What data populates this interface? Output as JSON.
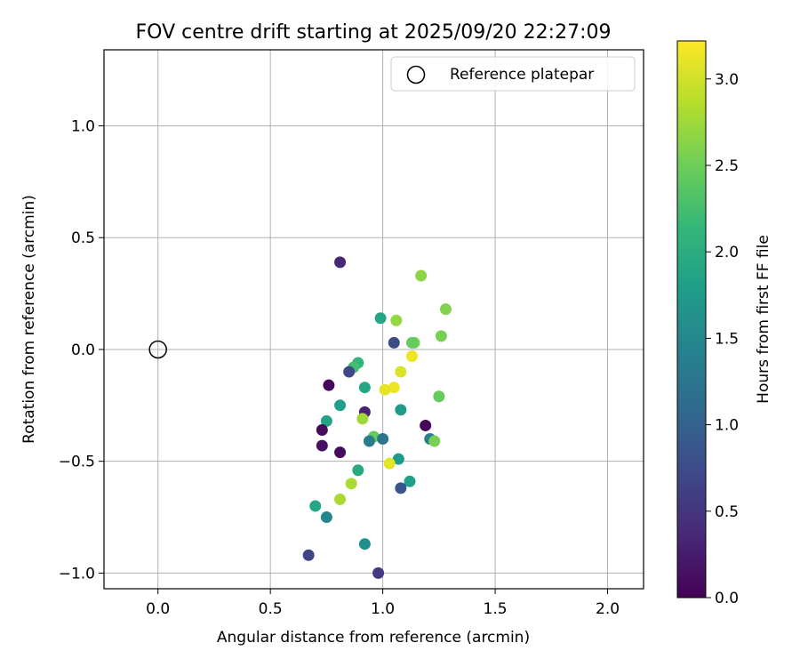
{
  "chart_data": {
    "type": "scatter",
    "title": "FOV centre drift starting at 2025/09/20 22:27:09",
    "xlabel": "Angular distance from reference (arcmin)",
    "ylabel": "Rotation from reference (arcmin)",
    "xlim": [
      -0.24,
      2.16
    ],
    "ylim": [
      -1.07,
      1.34
    ],
    "xticks": [
      0.0,
      0.5,
      1.0,
      1.5,
      2.0
    ],
    "xtick_labels": [
      "0.0",
      "0.5",
      "1.0",
      "1.5",
      "2.0"
    ],
    "yticks": [
      -1.0,
      -0.5,
      0.0,
      0.5,
      1.0
    ],
    "ytick_labels": [
      "−1.0",
      "−0.5",
      "0.0",
      "0.5",
      "1.0"
    ],
    "grid": true,
    "legend": {
      "position": "top-right",
      "entries": [
        "Reference platepar"
      ]
    },
    "reference_point": {
      "x": 0.0,
      "y": 0.0
    },
    "colorbar": {
      "label": "Hours from first FF file",
      "min": 0.0,
      "max": 3.22,
      "ticks": [
        0.0,
        0.5,
        1.0,
        1.5,
        2.0,
        2.5,
        3.0
      ],
      "tick_labels": [
        "0.0",
        "0.5",
        "1.0",
        "1.5",
        "2.0",
        "2.5",
        "3.0"
      ],
      "colormap": [
        "#440154",
        "#482878",
        "#3e4989",
        "#31688e",
        "#26828e",
        "#1f9e89",
        "#35b779",
        "#6ece58",
        "#b5de2b",
        "#fde725"
      ]
    },
    "points": [
      {
        "x": 0.81,
        "y": 0.39,
        "t": 0.35
      },
      {
        "x": 1.17,
        "y": 0.33,
        "t": 2.65
      },
      {
        "x": 1.28,
        "y": 0.18,
        "t": 2.6
      },
      {
        "x": 0.99,
        "y": 0.14,
        "t": 1.9
      },
      {
        "x": 1.06,
        "y": 0.13,
        "t": 2.7
      },
      {
        "x": 1.26,
        "y": 0.06,
        "t": 2.55
      },
      {
        "x": 1.14,
        "y": 0.03,
        "t": 2.55
      },
      {
        "x": 1.05,
        "y": 0.03,
        "t": 0.75
      },
      {
        "x": 1.13,
        "y": 0.03,
        "t": 2.45
      },
      {
        "x": 1.13,
        "y": -0.03,
        "t": 3.15
      },
      {
        "x": 0.89,
        "y": -0.06,
        "t": 2.1
      },
      {
        "x": 0.87,
        "y": -0.08,
        "t": 2.25
      },
      {
        "x": 1.08,
        "y": -0.1,
        "t": 3.05
      },
      {
        "x": 0.85,
        "y": -0.1,
        "t": 0.7
      },
      {
        "x": 0.76,
        "y": -0.16,
        "t": 0.05
      },
      {
        "x": 0.92,
        "y": -0.17,
        "t": 1.9
      },
      {
        "x": 1.05,
        "y": -0.17,
        "t": 3.15
      },
      {
        "x": 1.01,
        "y": -0.18,
        "t": 3.1
      },
      {
        "x": 1.25,
        "y": -0.21,
        "t": 2.45
      },
      {
        "x": 0.81,
        "y": -0.25,
        "t": 1.8
      },
      {
        "x": 1.08,
        "y": -0.27,
        "t": 1.75
      },
      {
        "x": 0.92,
        "y": -0.28,
        "t": 0.3
      },
      {
        "x": 0.91,
        "y": -0.31,
        "t": 2.75
      },
      {
        "x": 0.75,
        "y": -0.32,
        "t": 1.85
      },
      {
        "x": 1.19,
        "y": -0.34,
        "t": 0.05
      },
      {
        "x": 0.73,
        "y": -0.36,
        "t": 0.1
      },
      {
        "x": 0.96,
        "y": -0.39,
        "t": 2.45
      },
      {
        "x": 1.0,
        "y": -0.4,
        "t": 1.25
      },
      {
        "x": 1.21,
        "y": -0.4,
        "t": 1.4
      },
      {
        "x": 1.23,
        "y": -0.41,
        "t": 2.55
      },
      {
        "x": 0.94,
        "y": -0.41,
        "t": 1.35
      },
      {
        "x": 0.73,
        "y": -0.43,
        "t": 0.15
      },
      {
        "x": 0.81,
        "y": -0.46,
        "t": 0.1
      },
      {
        "x": 1.07,
        "y": -0.49,
        "t": 1.75
      },
      {
        "x": 1.03,
        "y": -0.51,
        "t": 3.1
      },
      {
        "x": 0.89,
        "y": -0.54,
        "t": 1.95
      },
      {
        "x": 1.12,
        "y": -0.59,
        "t": 1.8
      },
      {
        "x": 0.86,
        "y": -0.6,
        "t": 2.8
      },
      {
        "x": 1.08,
        "y": -0.62,
        "t": 0.85
      },
      {
        "x": 0.81,
        "y": -0.67,
        "t": 2.8
      },
      {
        "x": 0.7,
        "y": -0.7,
        "t": 1.9
      },
      {
        "x": 0.75,
        "y": -0.75,
        "t": 1.5
      },
      {
        "x": 0.92,
        "y": -0.87,
        "t": 1.6
      },
      {
        "x": 0.67,
        "y": -0.92,
        "t": 0.65
      },
      {
        "x": 0.98,
        "y": -1.0,
        "t": 0.55
      }
    ]
  }
}
